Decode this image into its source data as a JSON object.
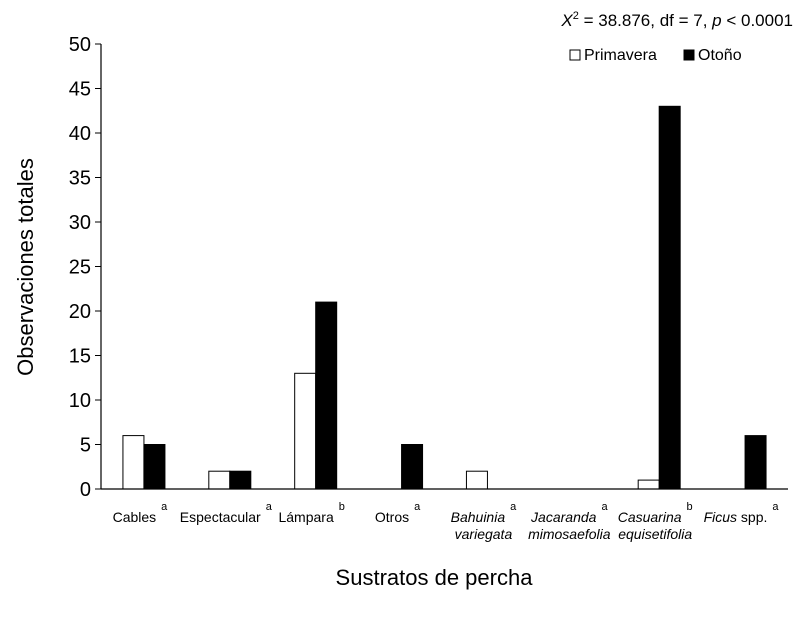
{
  "chart_data": {
    "type": "bar",
    "stat_annotation": {
      "x_symbol": "X",
      "x_exponent": "2",
      "rest_a": " = 38.876, df = 7, ",
      "p_symbol": "p",
      "rest_b": " < 0.0001"
    },
    "xlabel": "Sustratos de percha",
    "ylabel": "Observaciones totales",
    "ylim": [
      0,
      50
    ],
    "yticks": [
      "0",
      "5",
      "10",
      "15",
      "20",
      "25",
      "30",
      "35",
      "40",
      "45",
      "50"
    ],
    "grid": false,
    "legend_position": "top-right",
    "categories": [
      {
        "line1": "Cables",
        "line2": "",
        "italic": false,
        "sup": "a"
      },
      {
        "line1": "Espectacular",
        "line2": "",
        "italic": false,
        "sup": "a"
      },
      {
        "line1": "Lámpara",
        "line2": "",
        "italic": false,
        "sup": "b"
      },
      {
        "line1": "Otros",
        "line2": "",
        "italic": false,
        "sup": "a"
      },
      {
        "line1": "Bahuinia",
        "line2": "variegata",
        "italic": true,
        "sup": "a"
      },
      {
        "line1": "Jacaranda",
        "line2": "mimosaefolia",
        "italic": true,
        "sup": "a"
      },
      {
        "line1": "Casuarina",
        "line2": "equisetifolia",
        "italic": true,
        "sup": "b"
      },
      {
        "line1": "Ficus",
        "line1_rest": " spp.",
        "line2": "",
        "italic": true,
        "sup": "a"
      }
    ],
    "series": [
      {
        "name": "Primavera",
        "fill": "#ffffff",
        "stroke": "#000000",
        "values": [
          6,
          2,
          13,
          0,
          2,
          0,
          1,
          0
        ]
      },
      {
        "name": "Otoño",
        "fill": "#000000",
        "stroke": "#000000",
        "values": [
          5,
          2,
          21,
          5,
          0,
          0,
          43,
          6
        ]
      }
    ]
  }
}
